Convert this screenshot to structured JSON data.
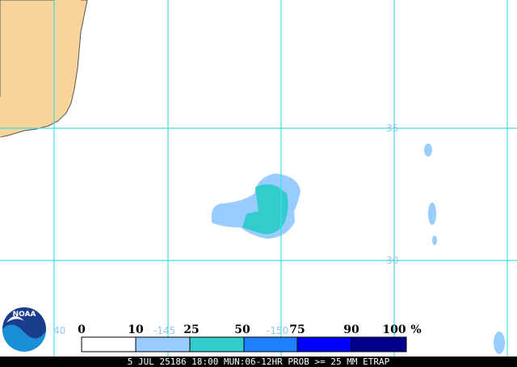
{
  "map": {
    "grid_labels": {
      "lat": [
        "35",
        "30"
      ],
      "lon": [
        "40",
        "-145",
        "-150"
      ]
    },
    "legend": {
      "labels": [
        "0",
        "10",
        "25",
        "50",
        "75",
        "90",
        "100"
      ],
      "unit": "%"
    },
    "logo_text": "NOAA",
    "footer": "5 JUL 25186 18:00 MUN:06-12HR PROB >= 25 MM ETRAP"
  }
}
